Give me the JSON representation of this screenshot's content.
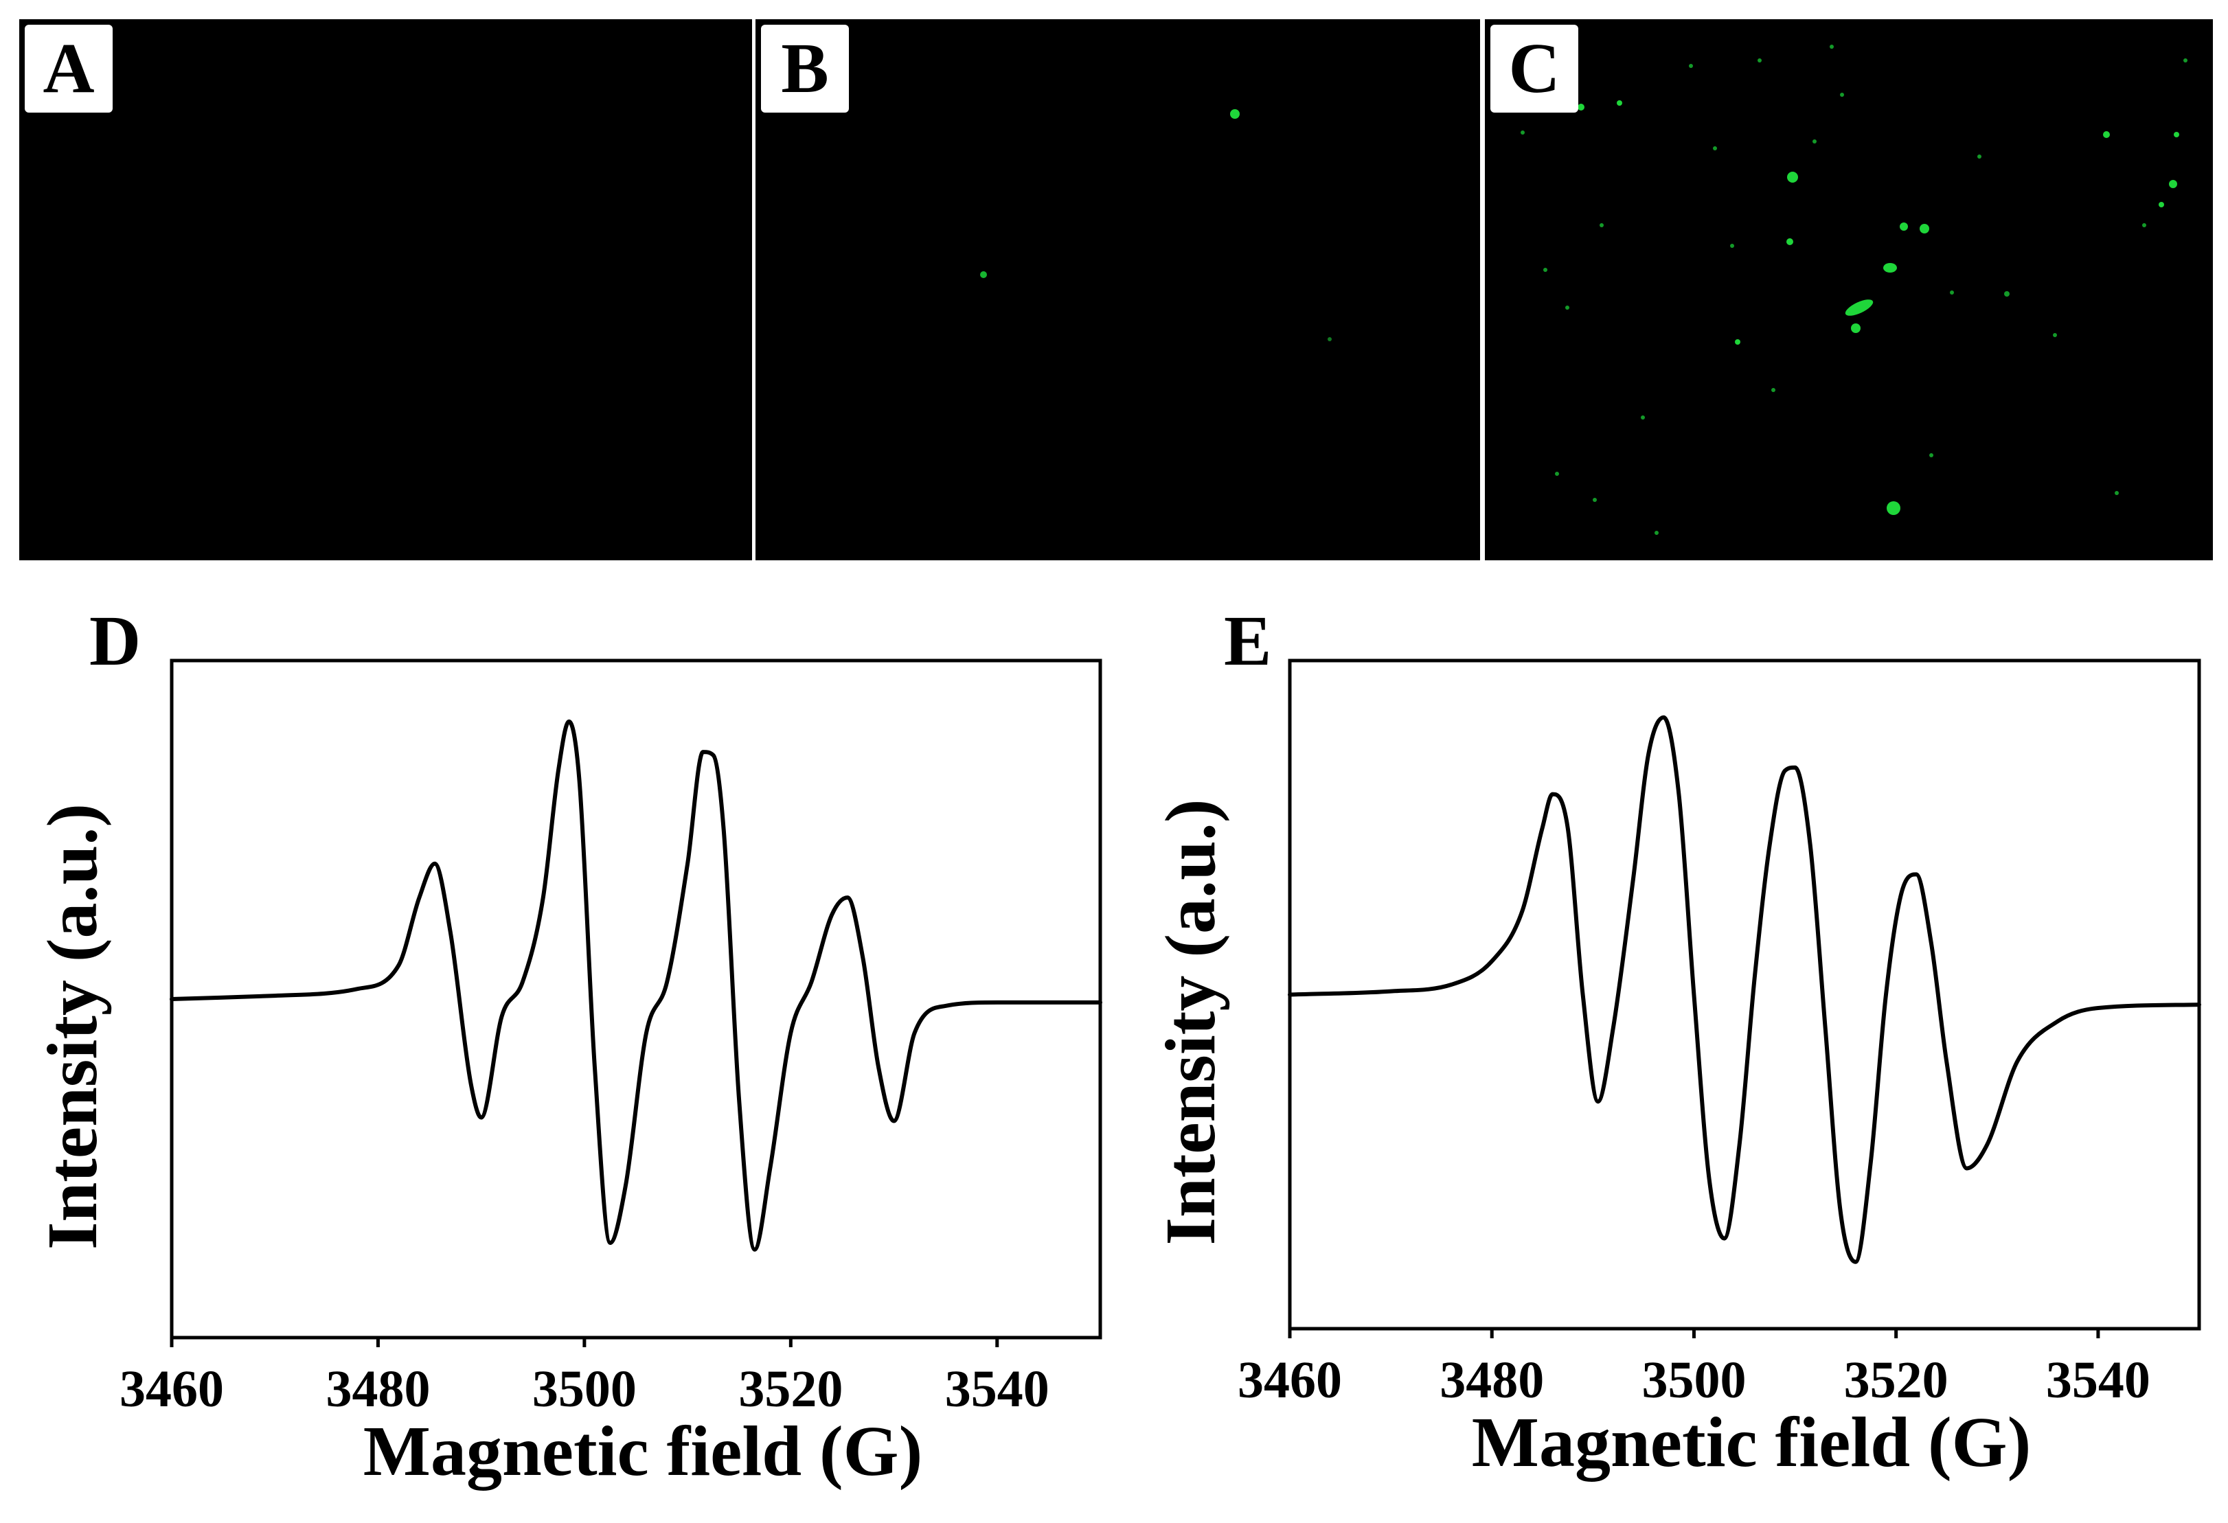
{
  "panels": {
    "a": {
      "label": "A"
    },
    "b": {
      "label": "B"
    },
    "c": {
      "label": "C"
    }
  },
  "colors": {
    "background": "#000000",
    "fluorescence": "#1fd63a",
    "line": "#000000"
  },
  "chart_data": [
    {
      "panel_label": "D",
      "type": "line",
      "xlabel": "Magnetic field (G)",
      "ylabel": "Intensity (a.u.)",
      "xlim": [
        3460,
        3550
      ],
      "ylim": [
        -1,
        1
      ],
      "xticks": [
        3460,
        3480,
        3500,
        3520,
        3540
      ],
      "grid": false,
      "series": [
        {
          "x": [
            3460,
            3470,
            3478,
            3482,
            3484,
            3485.5,
            3487,
            3489,
            3490,
            3492,
            3494,
            3496,
            3497.5,
            3498.5,
            3499.5,
            3501,
            3502.5,
            3504,
            3506,
            3508,
            3510,
            3511.5,
            3512.5,
            3513.5,
            3515,
            3516.5,
            3518,
            3520,
            3522,
            3524,
            3525.5,
            3527,
            3528.5,
            3530,
            3532,
            3535,
            3540,
            3550
          ],
          "y": [
            0.0,
            0.01,
            0.03,
            0.1,
            0.3,
            0.4,
            0.2,
            -0.25,
            -0.35,
            -0.05,
            0.05,
            0.3,
            0.68,
            0.82,
            0.65,
            -0.2,
            -0.72,
            -0.55,
            -0.1,
            0.05,
            0.4,
            0.73,
            0.72,
            0.5,
            -0.3,
            -0.74,
            -0.5,
            -0.1,
            0.05,
            0.25,
            0.3,
            0.12,
            -0.2,
            -0.36,
            -0.1,
            -0.02,
            -0.01,
            -0.01
          ]
        }
      ]
    },
    {
      "panel_label": "E",
      "type": "line",
      "xlabel": "Magnetic field (G)",
      "ylabel": "Intensity (a.u.)",
      "xlim": [
        3460,
        3550
      ],
      "ylim": [
        -1,
        1
      ],
      "xticks": [
        3460,
        3480,
        3500,
        3520,
        3540
      ],
      "grid": false,
      "series": [
        {
          "x": [
            3460,
            3470,
            3476,
            3480,
            3483,
            3485,
            3486,
            3487.5,
            3489,
            3490.5,
            3492,
            3494,
            3495.5,
            3497,
            3498.5,
            3500,
            3501.5,
            3503,
            3504.5,
            3506,
            3507.5,
            3509,
            3510,
            3511.5,
            3513,
            3514.5,
            3516,
            3517.5,
            3519,
            3520.5,
            3522,
            3523.5,
            3525,
            3527,
            3529,
            3532,
            3536,
            3540,
            3550
          ],
          "y": [
            0.0,
            0.01,
            0.03,
            0.1,
            0.25,
            0.5,
            0.6,
            0.5,
            0.0,
            -0.32,
            -0.1,
            0.35,
            0.72,
            0.83,
            0.6,
            0.0,
            -0.55,
            -0.73,
            -0.45,
            0.05,
            0.45,
            0.67,
            0.68,
            0.45,
            -0.1,
            -0.65,
            -0.8,
            -0.5,
            0.0,
            0.3,
            0.36,
            0.15,
            -0.2,
            -0.52,
            -0.45,
            -0.2,
            -0.08,
            -0.04,
            -0.03
          ]
        }
      ]
    }
  ]
}
